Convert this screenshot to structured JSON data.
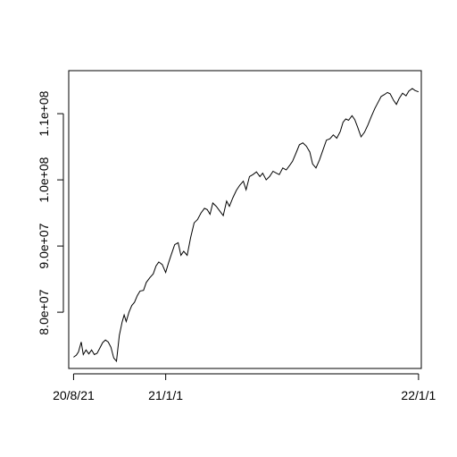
{
  "chart_data": {
    "type": "line",
    "title": "",
    "xlabel": "",
    "ylabel": "",
    "x_axis": {
      "type": "date",
      "range": [
        "2020-08-14",
        "2022-01-05"
      ],
      "ticks": [
        {
          "date": "2020-08-21",
          "label": "20/8/21"
        },
        {
          "date": "2021-01-01",
          "label": "21/1/1"
        },
        {
          "date": "2022-01-01",
          "label": "22/1/1"
        }
      ]
    },
    "y_axis": {
      "range": [
        71500000,
        116500000
      ],
      "ticks": [
        {
          "value": 80000000,
          "label": "8.0e+07"
        },
        {
          "value": 90000000,
          "label": "9.0e+07"
        },
        {
          "value": 100000000,
          "label": "1.0e+08"
        },
        {
          "value": 110000000,
          "label": "1.1e+08"
        }
      ]
    },
    "grid": false,
    "legend": "none",
    "series": [
      {
        "x": [
          "2020-08-21",
          "2020-08-25",
          "2020-08-28",
          "2020-09-01",
          "2020-09-04",
          "2020-09-08",
          "2020-09-12",
          "2020-09-16",
          "2020-09-20",
          "2020-09-24",
          "2020-09-28",
          "2020-10-02",
          "2020-10-06",
          "2020-10-10",
          "2020-10-14",
          "2020-10-18",
          "2020-10-22",
          "2020-10-26",
          "2020-10-30",
          "2020-11-02",
          "2020-11-05",
          "2020-11-09",
          "2020-11-13",
          "2020-11-17",
          "2020-11-21",
          "2020-11-25",
          "2020-11-30",
          "2020-12-04",
          "2020-12-09",
          "2020-12-14",
          "2020-12-18",
          "2020-12-22",
          "2020-12-27",
          "2021-01-01",
          "2021-01-05",
          "2021-01-09",
          "2021-01-14",
          "2021-01-19",
          "2021-01-23",
          "2021-01-27",
          "2021-02-01",
          "2021-02-06",
          "2021-02-11",
          "2021-02-16",
          "2021-02-21",
          "2021-02-26",
          "2021-03-02",
          "2021-03-06",
          "2021-03-10",
          "2021-03-15",
          "2021-03-20",
          "2021-03-25",
          "2021-03-30",
          "2021-04-03",
          "2021-04-08",
          "2021-04-13",
          "2021-04-18",
          "2021-04-23",
          "2021-04-27",
          "2021-05-02",
          "2021-05-07",
          "2021-05-12",
          "2021-05-17",
          "2021-05-21",
          "2021-05-26",
          "2021-05-31",
          "2021-06-05",
          "2021-06-10",
          "2021-06-14",
          "2021-06-19",
          "2021-06-24",
          "2021-06-29",
          "2021-07-03",
          "2021-07-08",
          "2021-07-13",
          "2021-07-18",
          "2021-07-23",
          "2021-07-28",
          "2021-08-01",
          "2021-08-06",
          "2021-08-11",
          "2021-08-16",
          "2021-08-21",
          "2021-08-26",
          "2021-08-31",
          "2021-09-05",
          "2021-09-10",
          "2021-09-14",
          "2021-09-18",
          "2021-09-22",
          "2021-09-27",
          "2021-10-01",
          "2021-10-05",
          "2021-10-10",
          "2021-10-15",
          "2021-10-20",
          "2021-10-25",
          "2021-10-30",
          "2021-11-04",
          "2021-11-08",
          "2021-11-13",
          "2021-11-17",
          "2021-11-21",
          "2021-11-26",
          "2021-11-30",
          "2021-12-04",
          "2021-12-09",
          "2021-12-14",
          "2021-12-18",
          "2021-12-23",
          "2021-12-27",
          "2022-01-01"
        ],
        "y": [
          73200000,
          73500000,
          74000000,
          75500000,
          73600000,
          74300000,
          73700000,
          74300000,
          73600000,
          73800000,
          74600000,
          75400000,
          75800000,
          75500000,
          74700000,
          73100000,
          72600000,
          76500000,
          78500000,
          79600000,
          78600000,
          80000000,
          81000000,
          81500000,
          82500000,
          83200000,
          83300000,
          84500000,
          85200000,
          85800000,
          87000000,
          87600000,
          87200000,
          86000000,
          87400000,
          88700000,
          90200000,
          90500000,
          88600000,
          89200000,
          88600000,
          91300000,
          93500000,
          94000000,
          95000000,
          95700000,
          95500000,
          94800000,
          96500000,
          96000000,
          95300000,
          94600000,
          96800000,
          96000000,
          97300000,
          98400000,
          99200000,
          99800000,
          98500000,
          100500000,
          100800000,
          101200000,
          100500000,
          101000000,
          100000000,
          100500000,
          101300000,
          101000000,
          100800000,
          101800000,
          101500000,
          102200000,
          102800000,
          104000000,
          105300000,
          105600000,
          105100000,
          104200000,
          102400000,
          101800000,
          103000000,
          104500000,
          106000000,
          106200000,
          106800000,
          106300000,
          107300000,
          108700000,
          109200000,
          109000000,
          109700000,
          109100000,
          108000000,
          106500000,
          107200000,
          108300000,
          109600000,
          110800000,
          111800000,
          112600000,
          112900000,
          113200000,
          113000000,
          112000000,
          111400000,
          112300000,
          113100000,
          112700000,
          113400000,
          113800000,
          113500000,
          113300000
        ],
        "x_override": null
      }
    ]
  }
}
